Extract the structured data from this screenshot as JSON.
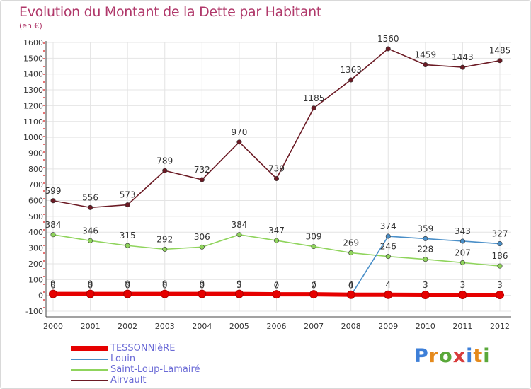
{
  "header": {
    "title": "Evolution du Montant de la Dette par Habitant",
    "subtitle": "(en €)"
  },
  "logo": {
    "text": "Proxiti",
    "letter_colors": [
      "#3d7fd8",
      "#e58a1c",
      "#5aa83a",
      "#d83c3c",
      "#3d7fd8",
      "#e58a1c",
      "#5aa83a"
    ]
  },
  "chart_data": {
    "type": "line",
    "title": "Evolution du Montant de la Dette par Habitant",
    "subtitle": "(en €)",
    "xlabel": "",
    "ylabel": "",
    "ylim": [
      -100,
      1600
    ],
    "yticks": [
      -100,
      0,
      100,
      200,
      300,
      400,
      500,
      600,
      700,
      800,
      900,
      1000,
      1100,
      1200,
      1300,
      1400,
      1500,
      1600
    ],
    "categories": [
      "2000",
      "2001",
      "2002",
      "2003",
      "2004",
      "2005",
      "2006",
      "2007",
      "2008",
      "2009",
      "2010",
      "2011",
      "2012"
    ],
    "grid": true,
    "legend_position": "bottom-left",
    "series": [
      {
        "name": "TESSONNIèRE",
        "color": "#e60000",
        "values": [
          9,
          9,
          9,
          9,
          9,
          9,
          7,
          7,
          4,
          4,
          3,
          3,
          3
        ],
        "labels": [
          "9",
          "9",
          "9",
          "9",
          "9",
          "9",
          "7",
          "7",
          "4",
          "4",
          "3",
          "3",
          "3"
        ]
      },
      {
        "name": "Louin",
        "color": "#4a8fc8",
        "values": [
          0,
          0,
          0,
          0,
          0,
          3,
          0,
          0,
          0,
          374,
          359,
          343,
          327
        ],
        "labels": [
          "0",
          "0",
          "0",
          "0",
          "0",
          "3",
          "0",
          "0",
          "0",
          "374",
          "359",
          "343",
          "327"
        ]
      },
      {
        "name": "Saint-Loup-Lamairé",
        "color": "#8fd45c",
        "values": [
          384,
          346,
          315,
          292,
          306,
          384,
          347,
          309,
          269,
          246,
          228,
          207,
          186
        ],
        "labels": [
          "384",
          "346",
          "315",
          "292",
          "306",
          "384",
          "347",
          "309",
          "269",
          "246",
          "228",
          "207",
          "186"
        ]
      },
      {
        "name": "Airvault",
        "color": "#6b1a24",
        "values": [
          599,
          556,
          573,
          789,
          732,
          970,
          739,
          1185,
          1363,
          1560,
          1459,
          1443,
          1485
        ],
        "labels": [
          "599",
          "556",
          "573",
          "789",
          "732",
          "970",
          "739",
          "1185",
          "1363",
          "1560",
          "1459",
          "1443",
          "1485"
        ]
      }
    ]
  }
}
